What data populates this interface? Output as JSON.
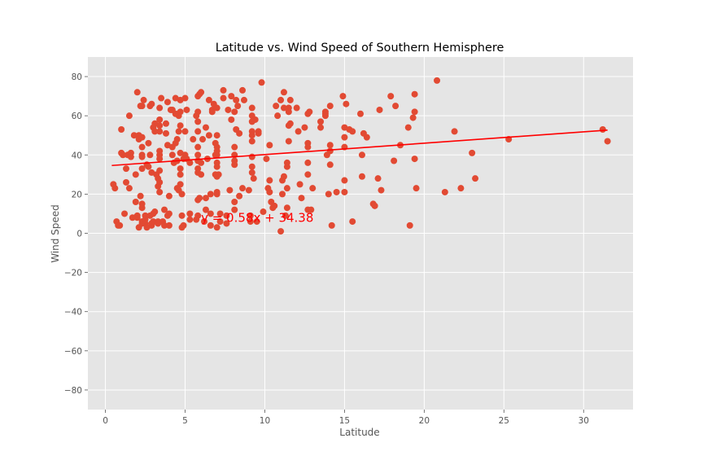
{
  "chart_data": {
    "type": "scatter",
    "title": "Latitude vs. Wind Speed of Southern Hemisphere",
    "xlabel": "Latitude",
    "ylabel": "Wind Speed",
    "xlim": [
      -1.1,
      33.1
    ],
    "ylim": [
      90,
      -90
    ],
    "y_inverted": true,
    "grid": true,
    "xticks": [
      0,
      5,
      10,
      15,
      20,
      25,
      30
    ],
    "yticks": [
      -80,
      -60,
      -40,
      -20,
      0,
      20,
      40,
      60,
      80
    ],
    "colors": {
      "points": "#e24a33",
      "line": "#ff0000",
      "background": "#e5e5e5",
      "grid": "#ffffff"
    },
    "regression": {
      "slope": 0.58,
      "intercept": 34.38,
      "x_range": [
        0.4,
        31.5
      ],
      "equation": "y = 0.58x + 34.38",
      "label_at": [
        6.0,
        8.0
      ]
    },
    "points": [
      [
        0.5,
        25
      ],
      [
        0.6,
        23
      ],
      [
        0.7,
        6
      ],
      [
        0.8,
        4
      ],
      [
        0.9,
        4
      ],
      [
        1.0,
        41
      ],
      [
        1.0,
        53
      ],
      [
        1.1,
        40
      ],
      [
        1.2,
        10
      ],
      [
        1.3,
        33
      ],
      [
        1.3,
        26
      ],
      [
        1.4,
        40
      ],
      [
        1.5,
        60
      ],
      [
        1.5,
        23
      ],
      [
        1.6,
        39
      ],
      [
        1.6,
        41
      ],
      [
        1.7,
        8
      ],
      [
        1.8,
        50
      ],
      [
        1.9,
        16
      ],
      [
        1.9,
        30
      ],
      [
        2.0,
        8
      ],
      [
        2.0,
        9
      ],
      [
        2.0,
        72
      ],
      [
        2.1,
        3
      ],
      [
        2.1,
        48
      ],
      [
        2.1,
        50
      ],
      [
        2.2,
        65
      ],
      [
        2.2,
        19
      ],
      [
        2.3,
        6
      ],
      [
        2.3,
        5
      ],
      [
        2.3,
        13
      ],
      [
        2.3,
        15
      ],
      [
        2.3,
        33
      ],
      [
        2.3,
        39
      ],
      [
        2.3,
        40
      ],
      [
        2.3,
        44
      ],
      [
        2.3,
        49
      ],
      [
        2.3,
        65
      ],
      [
        2.4,
        68
      ],
      [
        2.5,
        9
      ],
      [
        2.5,
        7
      ],
      [
        2.5,
        5
      ],
      [
        2.6,
        35
      ],
      [
        2.6,
        3
      ],
      [
        2.7,
        46
      ],
      [
        2.7,
        34
      ],
      [
        2.8,
        9
      ],
      [
        2.8,
        40
      ],
      [
        2.8,
        65
      ],
      [
        2.9,
        5
      ],
      [
        2.9,
        5
      ],
      [
        2.9,
        4
      ],
      [
        2.9,
        66
      ],
      [
        2.9,
        31
      ],
      [
        3.0,
        6
      ],
      [
        3.0,
        10
      ],
      [
        3.0,
        54
      ],
      [
        3.1,
        11
      ],
      [
        3.1,
        52
      ],
      [
        3.1,
        56
      ],
      [
        3.2,
        30
      ],
      [
        3.3,
        6
      ],
      [
        3.3,
        5
      ],
      [
        3.3,
        24
      ],
      [
        3.3,
        28
      ],
      [
        3.4,
        26
      ],
      [
        3.4,
        21
      ],
      [
        3.4,
        32
      ],
      [
        3.4,
        38
      ],
      [
        3.4,
        40
      ],
      [
        3.4,
        42
      ],
      [
        3.4,
        52
      ],
      [
        3.4,
        55
      ],
      [
        3.4,
        58
      ],
      [
        3.4,
        64
      ],
      [
        3.5,
        69
      ],
      [
        3.6,
        6
      ],
      [
        3.7,
        4
      ],
      [
        3.7,
        12
      ],
      [
        3.8,
        51
      ],
      [
        3.8,
        56
      ],
      [
        3.9,
        9
      ],
      [
        3.9,
        45
      ],
      [
        3.9,
        67
      ],
      [
        4.0,
        10
      ],
      [
        4.0,
        19
      ],
      [
        4.0,
        4
      ],
      [
        4.1,
        63
      ],
      [
        4.2,
        63
      ],
      [
        4.2,
        40
      ],
      [
        4.2,
        44
      ],
      [
        4.3,
        36
      ],
      [
        4.4,
        46
      ],
      [
        4.4,
        61
      ],
      [
        4.4,
        69
      ],
      [
        4.5,
        23
      ],
      [
        4.5,
        37
      ],
      [
        4.5,
        48
      ],
      [
        4.6,
        60
      ],
      [
        4.6,
        22
      ],
      [
        4.6,
        52
      ],
      [
        4.7,
        25
      ],
      [
        4.7,
        30
      ],
      [
        4.7,
        33
      ],
      [
        4.7,
        41
      ],
      [
        4.7,
        55
      ],
      [
        4.7,
        62
      ],
      [
        4.7,
        68
      ],
      [
        4.8,
        3
      ],
      [
        4.8,
        9
      ],
      [
        4.8,
        20
      ],
      [
        4.9,
        4
      ],
      [
        4.9,
        38
      ],
      [
        5.0,
        40
      ],
      [
        5.0,
        52
      ],
      [
        5.0,
        69
      ],
      [
        5.1,
        63
      ],
      [
        5.1,
        38
      ],
      [
        5.3,
        10
      ],
      [
        5.3,
        7
      ],
      [
        5.3,
        36
      ],
      [
        5.5,
        48
      ],
      [
        5.7,
        7
      ],
      [
        5.7,
        60
      ],
      [
        5.8,
        9
      ],
      [
        5.8,
        17
      ],
      [
        5.8,
        31
      ],
      [
        5.8,
        33
      ],
      [
        5.8,
        37
      ],
      [
        5.8,
        40
      ],
      [
        5.8,
        44
      ],
      [
        5.8,
        52
      ],
      [
        5.8,
        57
      ],
      [
        5.8,
        62
      ],
      [
        5.8,
        70
      ],
      [
        5.9,
        18
      ],
      [
        5.9,
        71
      ],
      [
        6.0,
        72
      ],
      [
        6.0,
        30
      ],
      [
        6.0,
        36
      ],
      [
        6.1,
        48
      ],
      [
        6.2,
        6
      ],
      [
        6.3,
        18
      ],
      [
        6.3,
        12
      ],
      [
        6.3,
        54
      ],
      [
        6.4,
        38
      ],
      [
        6.5,
        50
      ],
      [
        6.5,
        68
      ],
      [
        6.6,
        4
      ],
      [
        6.6,
        10
      ],
      [
        6.6,
        20
      ],
      [
        6.7,
        63
      ],
      [
        6.7,
        62
      ],
      [
        6.8,
        66
      ],
      [
        6.9,
        46
      ],
      [
        6.9,
        30
      ],
      [
        6.9,
        40
      ],
      [
        7.0,
        3
      ],
      [
        7.0,
        20
      ],
      [
        7.0,
        21
      ],
      [
        7.0,
        29
      ],
      [
        7.0,
        34
      ],
      [
        7.0,
        36
      ],
      [
        7.0,
        40
      ],
      [
        7.0,
        42
      ],
      [
        7.0,
        44
      ],
      [
        7.0,
        50
      ],
      [
        7.0,
        64
      ],
      [
        7.1,
        30
      ],
      [
        7.2,
        6
      ],
      [
        7.2,
        10
      ],
      [
        7.4,
        73
      ],
      [
        7.4,
        69
      ],
      [
        7.6,
        9
      ],
      [
        7.6,
        5
      ],
      [
        7.7,
        63
      ],
      [
        7.8,
        22
      ],
      [
        7.9,
        70
      ],
      [
        7.9,
        58
      ],
      [
        8.1,
        35
      ],
      [
        8.1,
        37
      ],
      [
        8.1,
        40
      ],
      [
        8.1,
        44
      ],
      [
        8.1,
        62
      ],
      [
        8.1,
        12
      ],
      [
        8.1,
        16
      ],
      [
        8.2,
        68
      ],
      [
        8.2,
        53
      ],
      [
        8.3,
        65
      ],
      [
        8.4,
        51
      ],
      [
        8.4,
        19
      ],
      [
        8.6,
        23
      ],
      [
        8.6,
        73
      ],
      [
        8.7,
        68
      ],
      [
        9.0,
        22
      ],
      [
        9.1,
        9
      ],
      [
        9.1,
        6
      ],
      [
        9.2,
        31
      ],
      [
        9.2,
        34
      ],
      [
        9.2,
        39
      ],
      [
        9.2,
        47
      ],
      [
        9.2,
        50
      ],
      [
        9.2,
        52
      ],
      [
        9.2,
        57
      ],
      [
        9.2,
        60
      ],
      [
        9.2,
        64
      ],
      [
        9.3,
        28
      ],
      [
        9.4,
        58
      ],
      [
        9.5,
        6
      ],
      [
        9.6,
        51
      ],
      [
        9.6,
        52
      ],
      [
        9.8,
        77
      ],
      [
        9.9,
        11
      ],
      [
        10.1,
        38
      ],
      [
        10.2,
        23
      ],
      [
        10.3,
        21
      ],
      [
        10.3,
        45
      ],
      [
        10.3,
        27
      ],
      [
        10.4,
        16
      ],
      [
        10.5,
        13
      ],
      [
        10.6,
        14
      ],
      [
        10.7,
        65
      ],
      [
        10.8,
        60
      ],
      [
        11.0,
        68
      ],
      [
        11.0,
        1
      ],
      [
        11.1,
        27
      ],
      [
        11.1,
        20
      ],
      [
        11.2,
        29
      ],
      [
        11.2,
        64
      ],
      [
        11.2,
        72
      ],
      [
        11.3,
        9
      ],
      [
        11.4,
        13
      ],
      [
        11.4,
        34
      ],
      [
        11.4,
        23
      ],
      [
        11.4,
        36
      ],
      [
        11.5,
        47
      ],
      [
        11.5,
        55
      ],
      [
        11.5,
        62
      ],
      [
        11.5,
        64
      ],
      [
        11.6,
        68
      ],
      [
        11.6,
        56
      ],
      [
        12.0,
        64
      ],
      [
        12.1,
        52
      ],
      [
        12.2,
        25
      ],
      [
        12.3,
        18
      ],
      [
        12.5,
        54
      ],
      [
        12.7,
        12
      ],
      [
        12.7,
        30
      ],
      [
        12.7,
        36
      ],
      [
        12.7,
        44
      ],
      [
        12.7,
        46
      ],
      [
        12.7,
        61
      ],
      [
        12.8,
        62
      ],
      [
        12.9,
        12
      ],
      [
        13.0,
        23
      ],
      [
        13.5,
        57
      ],
      [
        13.5,
        54
      ],
      [
        13.8,
        60
      ],
      [
        13.8,
        62
      ],
      [
        13.8,
        61
      ],
      [
        13.9,
        40
      ],
      [
        14.0,
        20
      ],
      [
        14.1,
        35
      ],
      [
        14.1,
        42
      ],
      [
        14.1,
        45
      ],
      [
        14.1,
        65
      ],
      [
        14.2,
        4
      ],
      [
        14.5,
        21
      ],
      [
        14.9,
        70
      ],
      [
        15.0,
        27
      ],
      [
        15.0,
        44
      ],
      [
        15.0,
        49
      ],
      [
        15.0,
        54
      ],
      [
        15.0,
        21
      ],
      [
        15.1,
        66
      ],
      [
        15.3,
        53
      ],
      [
        15.5,
        52
      ],
      [
        15.5,
        6
      ],
      [
        16.0,
        61
      ],
      [
        16.1,
        29
      ],
      [
        16.1,
        40
      ],
      [
        16.2,
        51
      ],
      [
        16.4,
        49
      ],
      [
        16.8,
        15
      ],
      [
        16.9,
        14
      ],
      [
        17.1,
        28
      ],
      [
        17.2,
        63
      ],
      [
        17.3,
        22
      ],
      [
        17.9,
        70
      ],
      [
        18.1,
        37
      ],
      [
        18.2,
        65
      ],
      [
        18.5,
        45
      ],
      [
        19.0,
        54
      ],
      [
        19.1,
        4
      ],
      [
        19.3,
        59
      ],
      [
        19.4,
        38
      ],
      [
        19.4,
        62
      ],
      [
        19.4,
        71
      ],
      [
        19.5,
        23
      ],
      [
        20.8,
        78
      ],
      [
        21.3,
        21
      ],
      [
        21.9,
        52
      ],
      [
        22.3,
        23
      ],
      [
        23.0,
        41
      ],
      [
        23.2,
        28
      ],
      [
        25.3,
        48
      ],
      [
        31.2,
        53
      ],
      [
        31.5,
        47
      ]
    ]
  }
}
